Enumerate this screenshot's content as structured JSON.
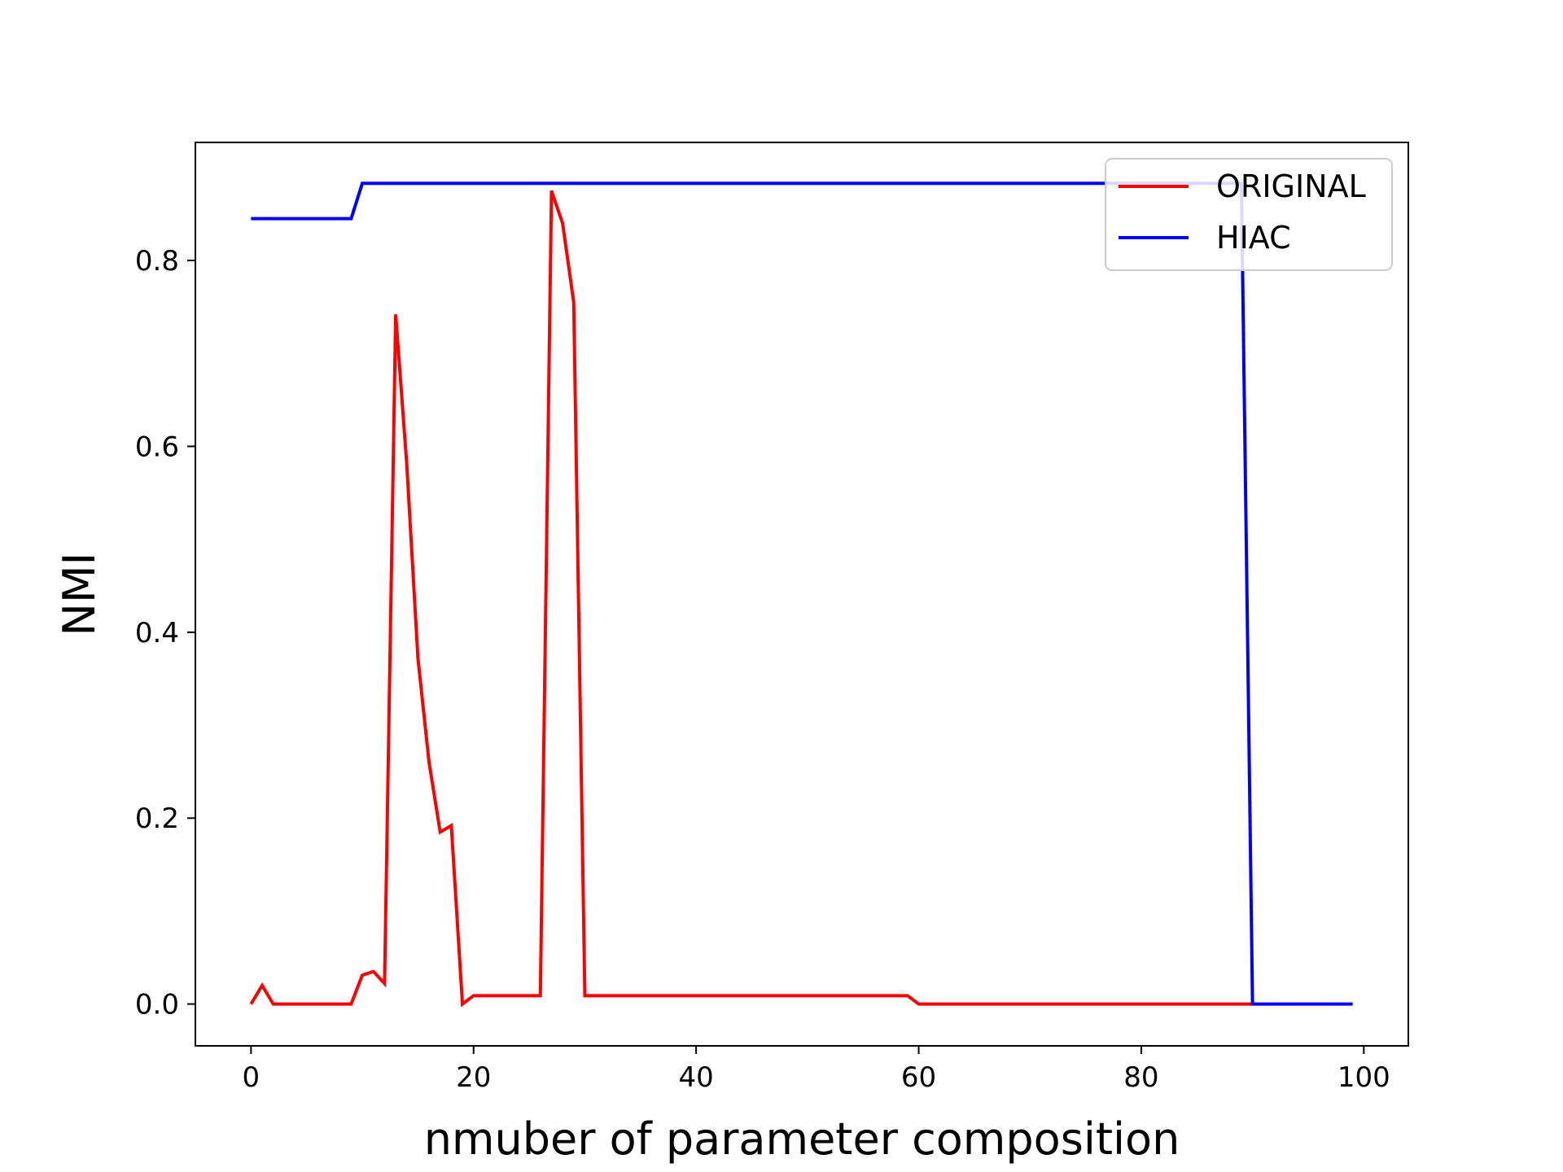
{
  "chart_data": {
    "type": "line",
    "title": "",
    "xlabel": "nmuber of parameter composition",
    "ylabel": "NMI",
    "xlim": [
      -5,
      104
    ],
    "ylim": [
      -0.045,
      0.927
    ],
    "xticks": [
      0,
      20,
      40,
      60,
      80,
      100
    ],
    "yticks": [
      0.0,
      0.2,
      0.4,
      0.6,
      0.8
    ],
    "xtick_labels": [
      "0",
      "20",
      "40",
      "60",
      "80",
      "100"
    ],
    "ytick_labels": [
      "0.0",
      "0.2",
      "0.4",
      "0.6",
      "0.8"
    ],
    "grid": false,
    "legend_position": "top-right",
    "series": [
      {
        "name": "ORIGINAL",
        "color": "#ff0000",
        "points": [
          [
            0,
            0.0
          ],
          [
            1,
            0.02
          ],
          [
            2,
            0.0
          ],
          [
            9,
            0.0
          ],
          [
            10,
            0.031
          ],
          [
            11,
            0.035
          ],
          [
            12,
            0.022
          ],
          [
            13,
            0.742
          ],
          [
            14,
            0.58
          ],
          [
            15,
            0.372
          ],
          [
            16,
            0.26
          ],
          [
            17,
            0.185
          ],
          [
            18,
            0.192
          ],
          [
            19,
            0.0
          ],
          [
            20,
            0.009
          ],
          [
            26,
            0.009
          ],
          [
            27,
            0.875
          ],
          [
            28,
            0.84
          ],
          [
            29,
            0.755
          ],
          [
            30,
            0.009
          ],
          [
            59,
            0.009
          ],
          [
            60,
            0.0
          ],
          [
            90,
            0.0
          ]
        ]
      },
      {
        "name": "HIAC",
        "color": "#0000ff",
        "points": [
          [
            0,
            0.845
          ],
          [
            9,
            0.845
          ],
          [
            10,
            0.883
          ],
          [
            89,
            0.883
          ],
          [
            90,
            0.0
          ],
          [
            99,
            0.0
          ]
        ]
      }
    ]
  }
}
